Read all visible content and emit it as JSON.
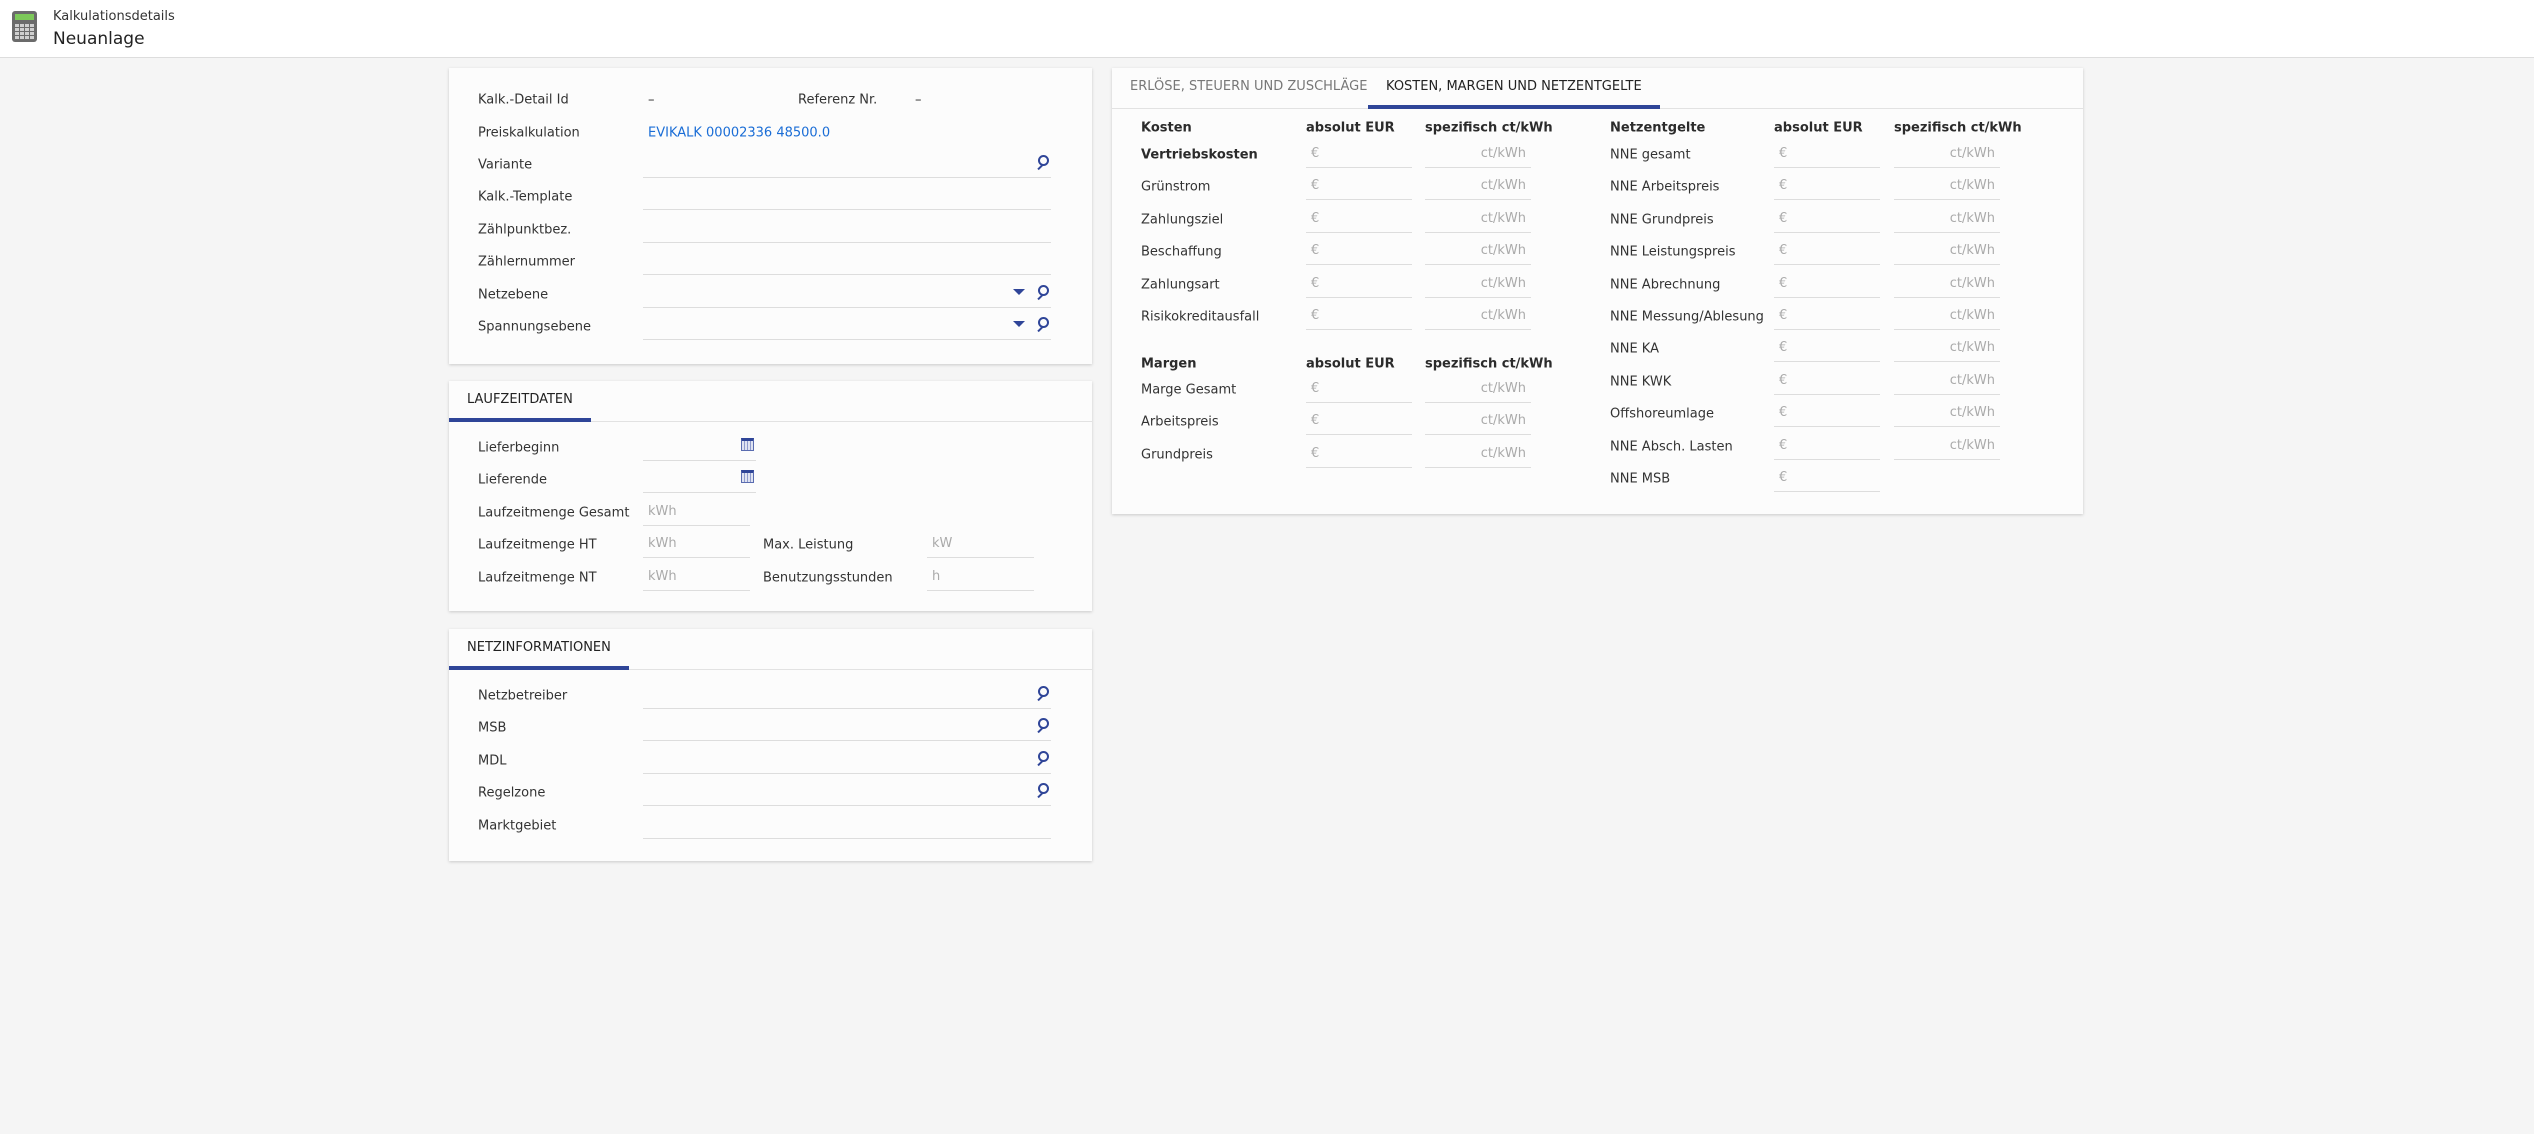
{
  "header": {
    "subtitle": "Kalkulationsdetails",
    "title": "Neuanlage",
    "icon": "calculator-icon"
  },
  "stammdaten": {
    "detail_id_label": "Kalk.-Detail Id",
    "detail_id_value": "–",
    "referenz_label": "Referenz Nr.",
    "referenz_value": "–",
    "preiskalkulation_label": "Preiskalkulation",
    "preiskalkulation_value": "EVIKALK 00002336 48500.0",
    "fields": [
      {
        "label": "Variante",
        "search": true,
        "dropdown": false
      },
      {
        "label": "Kalk.-Template",
        "search": false,
        "dropdown": false
      },
      {
        "label": "Zählpunktbez.",
        "search": false,
        "dropdown": false
      },
      {
        "label": "Zählernummer",
        "search": false,
        "dropdown": false
      },
      {
        "label": "Netzebene",
        "search": true,
        "dropdown": true
      },
      {
        "label": "Spannungsebene",
        "search": true,
        "dropdown": true
      }
    ]
  },
  "laufzeit": {
    "tab": "LAUFZEITDATEN",
    "lieferbeginn": "Lieferbeginn",
    "lieferende": "Lieferende",
    "gesamt": {
      "label": "Laufzeitmenge Gesamt",
      "placeholder": "kWh"
    },
    "ht": {
      "label": "Laufzeitmenge HT",
      "placeholder": "kWh"
    },
    "nt": {
      "label": "Laufzeitmenge NT",
      "placeholder": "kWh"
    },
    "max_leistung": {
      "label": "Max. Leistung",
      "placeholder": "kW"
    },
    "benutzungsstunden": {
      "label": "Benutzungsstunden",
      "placeholder": "h"
    }
  },
  "netz": {
    "tab": "NETZINFORMATIONEN",
    "fields": [
      {
        "label": "Netzbetreiber",
        "search": true
      },
      {
        "label": "MSB",
        "search": true
      },
      {
        "label": "MDL",
        "search": true
      },
      {
        "label": "Regelzone",
        "search": true
      },
      {
        "label": "Marktgebiet",
        "search": false
      }
    ]
  },
  "kosten_card": {
    "tabs": [
      {
        "label": "ERLÖSE, STEUERN UND ZUSCHLÄGE",
        "active": false
      },
      {
        "label": "KOSTEN, MARGEN UND NETZENTGELTE",
        "active": true
      }
    ],
    "col_abs": "absolut EUR",
    "col_spez": "spezifisch ct/kWh",
    "eur_placeholder": "€",
    "ct_placeholder": "ct/kWh",
    "kosten_header": "Kosten",
    "kosten_rows": [
      {
        "label": "Vertriebskosten",
        "bold": true
      },
      {
        "label": "Grünstrom"
      },
      {
        "label": "Zahlungsziel"
      },
      {
        "label": "Beschaffung"
      },
      {
        "label": "Zahlungsart"
      },
      {
        "label": "Risikokreditausfall"
      }
    ],
    "margen_header": "Margen",
    "margen_rows": [
      {
        "label": "Marge Gesamt"
      },
      {
        "label": "Arbeitspreis"
      },
      {
        "label": "Grundpreis"
      }
    ],
    "netz_header": "Netzentgelte",
    "netz_rows": [
      {
        "label": "NNE gesamt"
      },
      {
        "label": "NNE Arbeitspreis"
      },
      {
        "label": "NNE Grundpreis"
      },
      {
        "label": "NNE Leistungspreis"
      },
      {
        "label": "NNE Abrechnung"
      },
      {
        "label": "NNE Messung/Ablesung"
      },
      {
        "label": "NNE KA"
      },
      {
        "label": "NNE KWK"
      },
      {
        "label": "Offshoreumlage"
      },
      {
        "label": "NNE Absch. Lasten"
      },
      {
        "label": "NNE MSB",
        "no_spez": true
      }
    ]
  },
  "colors": {
    "accent": "#2f4598",
    "link": "#1a6dd6",
    "background": "#f5f5f5"
  }
}
